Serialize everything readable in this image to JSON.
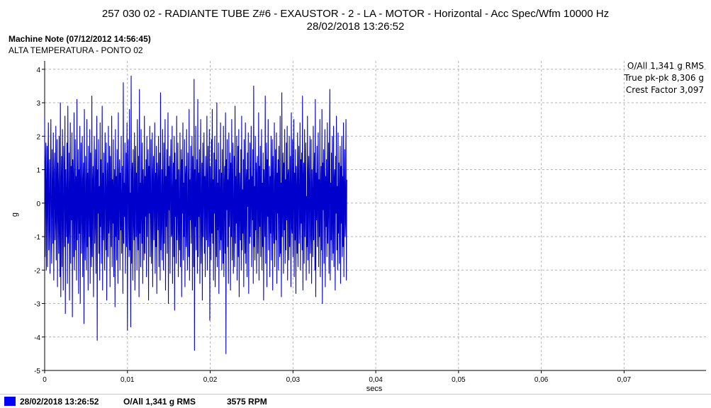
{
  "header": {
    "title": "257 030 02 - RADIANTE TUBE Z#6 - EXAUSTOR - 2 - LA - MOTOR - Horizontal - Acc Spec/Wfm 10000 Hz",
    "subtitle": "28/02/2018 13:26:52"
  },
  "note": {
    "heading": "Machine Note (07/12/2012 14:56:45)",
    "text": "ALTA TEMPERATURA - PONTO 02"
  },
  "stats": {
    "overall": "O/All 1,341 g RMS",
    "peak_to_peak": "True pk-pk 8,306 g",
    "crest_factor": "Crest Factor 3,097"
  },
  "status_bar": {
    "date": "28/02/2018 13:26:52",
    "overall": "O/All 1,341 g RMS",
    "rpm": "3575 RPM",
    "swatch_color": "#0000ff"
  },
  "chart_data": {
    "type": "line",
    "xlabel": "secs",
    "ylabel": "g",
    "xlim": [
      0,
      0.0799
    ],
    "ylim": [
      -5,
      4.25
    ],
    "x_ticks": [
      0,
      0.01,
      0.02,
      0.03,
      0.04,
      0.05,
      0.06,
      0.07
    ],
    "x_tick_labels": [
      "0",
      "0,01",
      "0,02",
      "0,03",
      "0,04",
      "0,05",
      "0,06",
      "0,07"
    ],
    "y_ticks": [
      4,
      3,
      2,
      1,
      0,
      -1,
      -2,
      -3,
      -4,
      -5
    ],
    "y_tick_labels": [
      "4",
      "3",
      "2",
      "1",
      "0",
      "-1",
      "-2",
      "-3",
      "-4",
      "-5"
    ],
    "grid": true,
    "line_color": "#0000cc",
    "series": [
      {
        "sample_interval_s": 5e-05,
        "values": [
          2.6,
          -1.6,
          1.1,
          1.8,
          -2.0,
          0.4,
          1.7,
          -1.9,
          0.9,
          2.4,
          -1.4,
          -0.6,
          1.3,
          -2.1,
          0.7,
          2.5,
          -0.9,
          -1.8,
          1.6,
          0.2,
          -1.2,
          2.1,
          -2.3,
          0.8,
          1.5,
          -1.1,
          -0.4,
          2.3,
          -1.7,
          0.5,
          1.9,
          -2.5,
          1.2,
          0.3,
          -1.5,
          2.0,
          -0.8,
          -2.2,
          3.0,
          -2.8,
          0.6,
          1.4,
          -1.9,
          2.2,
          -0.3,
          -2.6,
          1.7,
          0.9,
          -1.3,
          2.6,
          -3.3,
          1.0,
          0.1,
          -1.0,
          1.8,
          -2.4,
          2.9,
          -1.2,
          -0.7,
          1.5,
          -2.9,
          0.4,
          2.4,
          -1.8,
          1.1,
          -0.5,
          2.1,
          -3.4,
          1.3,
          0.7,
          -1.6,
          2.7,
          -2.0,
          -0.2,
          1.9,
          -1.4,
          0.8,
          -2.3,
          3.1,
          -1.1,
          0.2,
          1.6,
          -2.7,
          1.0,
          -0.9,
          2.3,
          -3.0,
          0.5,
          1.8,
          -1.5,
          -0.1,
          2.0,
          -2.2,
          0.6,
          1.2,
          -3.6,
          2.8,
          -0.6,
          -1.7,
          1.4,
          0.3,
          -2.0,
          2.5,
          -1.3,
          0.9,
          -2.6,
          1.7,
          0.0,
          -1.0,
          2.2,
          -2.4,
          1.5,
          -0.8,
          -1.9,
          3.2,
          -1.6,
          0.4,
          1.1,
          -2.8,
          0.7,
          2.0,
          -1.2,
          -0.4,
          1.6,
          -2.1,
          0.8,
          2.6,
          -4.1,
          1.0,
          -0.3,
          1.9,
          -1.5,
          0.5,
          -2.3,
          2.4,
          -0.7,
          1.3,
          -1.8,
          0.2,
          2.9,
          -2.6,
          0.9,
          -1.1,
          1.5,
          -0.5,
          -2.0,
          2.1,
          0.6,
          -1.4,
          1.8,
          -2.9,
          0.3,
          1.2,
          -1.6,
          2.3,
          -0.9,
          -0.2,
          1.7,
          -2.5,
          1.4,
          0.1,
          -1.3,
          2.6,
          -1.9,
          0.7,
          -0.6,
          1.9,
          -2.2,
          0.4,
          1.0,
          -3.1,
          2.2,
          -1.0,
          0.8,
          -1.7,
          1.6,
          0.0,
          -2.4,
          2.7,
          -1.1,
          0.5,
          1.3,
          -2.0,
          0.9,
          -0.8,
          2.0,
          -1.5,
          -0.3,
          1.1,
          -2.7,
          3.6,
          -1.2,
          0.6,
          -0.4,
          1.8,
          -2.1,
          0.2,
          1.5,
          -1.3,
          2.4,
          -3.8,
          0.8,
          1.9,
          -0.7,
          -1.6,
          2.8,
          -1.4,
          0.3,
          -3.7,
          3.8,
          -1.8,
          0.7,
          1.2,
          -2.3,
          1.6,
          -0.5,
          -1.1,
          2.1,
          -2.6,
          0.4,
          1.7,
          -1.0,
          0.9,
          -2.0,
          2.5,
          -0.6,
          -1.4,
          1.4,
          -2.8,
          3.4,
          -0.9,
          0.6,
          -1.9,
          2.2,
          -0.2,
          -1.2,
          1.8,
          -2.4,
          1.0,
          0.3,
          -1.7,
          2.6,
          -1.5,
          0.8,
          -0.4,
          1.3,
          -2.2,
          2.0,
          -1.0,
          0.5,
          1.6,
          -2.9,
          1.1,
          -0.3,
          2.3,
          -1.6,
          0.2,
          1.9,
          -1.8,
          -0.6,
          2.1,
          -2.5,
          0.7,
          1.4,
          -1.1,
          0.0,
          2.4,
          -2.1,
          0.9,
          -1.3,
          1.7,
          -2.7,
          1.2,
          0.4,
          -0.8,
          2.0,
          -1.9,
          0.6,
          1.5,
          -2.3,
          3.3,
          -1.4,
          -0.5,
          1.0,
          -1.7,
          2.2,
          -0.1,
          -2.0,
          1.8,
          -1.2,
          0.3,
          2.5,
          -2.6,
          0.8,
          -0.7,
          1.6,
          -1.5,
          0.5,
          2.7,
          -3.0,
          1.1,
          -0.2,
          1.4,
          -2.1,
          0.9,
          1.9,
          -1.0,
          -0.9,
          2.3,
          -2.4,
          0.2,
          1.2,
          -1.6,
          2.0,
          -3.2,
          1.5,
          -0.4,
          0.7,
          -1.8,
          2.6,
          -1.1,
          0.1,
          1.8,
          -2.2,
          1.0,
          -0.6,
          -1.4,
          2.1,
          -1.9,
          0.4,
          1.6,
          -2.8,
          1.3,
          -0.3,
          2.4,
          -1.7,
          0.6,
          -1.0,
          1.9,
          -2.5,
          0.8,
          1.1,
          -1.3,
          2.2,
          -0.8,
          -2.0,
          1.5,
          0.3,
          -1.6,
          2.8,
          -2.3,
          0.7,
          -0.5,
          1.7,
          -1.2,
          0.0,
          2.0,
          -2.6,
          1.4,
          0.5,
          -1.9,
          3.7,
          -4.4,
          1.0,
          -0.7,
          2.3,
          -1.4,
          0.2,
          1.3,
          -2.1,
          3.1,
          -1.6,
          0.9,
          -0.4,
          1.6,
          -2.4,
          0.6,
          2.5,
          -1.8,
          -0.2,
          1.2,
          -2.9,
          1.8,
          -1.0,
          0.3,
          2.1,
          -1.5,
          0.8,
          -2.2,
          1.4,
          0.1,
          -1.1,
          2.6,
          -2.0,
          0.5,
          1.7,
          -1.3,
          -0.6,
          2.2,
          -3.5,
          1.1,
          0.4,
          -1.7,
          1.9,
          -0.9,
          2.8,
          -1.2,
          0.7,
          -2.3,
          1.5,
          -0.3,
          2.0,
          -2.5,
          0.2,
          1.3,
          -1.6,
          3.0,
          -1.9,
          0.6,
          -0.8,
          1.8,
          -2.7,
          1.0,
          0.0,
          -1.4,
          2.4,
          -1.1,
          0.9,
          -2.0,
          1.6,
          -0.5,
          -1.8,
          2.3,
          -2.2,
          0.4,
          1.1,
          -1.5,
          2.7,
          -4.5,
          1.3,
          -0.2,
          1.9,
          -1.3,
          0.7,
          -2.4,
          2.1,
          -0.7,
          0.3,
          1.5,
          -2.6,
          1.2,
          -1.0,
          2.5,
          -1.7,
          0.5,
          1.8,
          -2.1,
          -0.4,
          1.4,
          -1.9,
          2.9,
          -1.2,
          0.8,
          -0.6,
          2.0,
          -2.3,
          0.1,
          1.7,
          -1.6,
          2.2,
          -2.8,
          0.9,
          0.2,
          -1.1,
          1.6,
          -2.0,
          2.6,
          -1.4,
          0.4,
          -0.9,
          1.3,
          -2.5,
          1.9,
          -0.3,
          -1.5,
          2.4,
          -1.8,
          0.6,
          1.0,
          -2.2,
          1.5,
          -0.1,
          2.1,
          -2.7,
          0.7,
          -1.2,
          1.8,
          -1.0,
          0.3,
          2.3,
          -1.9,
          0.8,
          -0.5,
          1.6,
          -2.4,
          3.5,
          -1.3,
          0.5,
          -1.7,
          2.0,
          -0.8,
          1.2,
          -2.1,
          0.9,
          1.4,
          -1.5,
          -0.2,
          2.7,
          -2.3,
          1.1,
          -0.7,
          1.7,
          -1.6,
          0.4,
          2.2,
          -2.0,
          0.6,
          -1.3,
          1.5,
          -2.9,
          1.0,
          0.2,
          -1.0,
          3.2,
          -1.8,
          0.7,
          1.8,
          -2.5,
          1.3,
          -0.4,
          2.5,
          -1.4,
          0.0,
          1.1,
          -2.2,
          0.8,
          -0.9,
          2.0,
          -1.7,
          0.5,
          1.9,
          -2.6,
          1.4,
          -0.6,
          -1.2,
          2.4,
          -1.9,
          0.3,
          1.6,
          -1.1,
          2.1,
          -2.4,
          0.9,
          -0.3,
          1.3,
          -2.0,
          1.7,
          0.4,
          -1.6,
          2.6,
          -1.5,
          0.6,
          -2.8,
          3.3,
          -1.0,
          0.1,
          1.5,
          -2.1,
          1.2,
          -0.8,
          2.2,
          -1.8,
          0.7,
          -1.4,
          1.8,
          -0.5,
          2.3,
          -2.3,
          0.8,
          1.0,
          -1.7,
          2.0,
          -1.3,
          0.2,
          1.4,
          -2.5,
          2.7,
          -0.7,
          -0.9,
          1.9,
          -1.6,
          0.5,
          2.5,
          -2.2,
          0.9,
          -1.1,
          1.6,
          -2.7,
          1.1,
          0.3,
          -1.5,
          2.1,
          -1.9,
          0.6,
          1.7,
          -1.2,
          -0.4,
          2.4,
          -2.0,
          1.3,
          -0.6,
          1.5,
          -1.4,
          3.2,
          -2.6,
          0.7,
          1.2,
          -1.8,
          2.2,
          -1.0,
          0.4,
          1.8,
          -2.3,
          0.2,
          -1.3,
          2.6,
          -1.7,
          0.8,
          1.4,
          -2.1,
          0.5,
          2.0,
          -1.5,
          -0.8,
          1.9,
          -2.4,
          1.0,
          0.1,
          -1.6,
          2.3,
          -1.1,
          0.6,
          1.5,
          -2.0,
          3.1,
          -2.8,
          0.9,
          -0.5,
          1.7,
          -1.3,
          0.3,
          2.1,
          -1.9,
          0.7,
          -1.0,
          2.5,
          -2.2,
          0.4,
          1.1,
          -1.4,
          2.8,
          -3.0,
          1.2,
          -0.2,
          1.6,
          -1.8,
          0.5,
          2.2,
          -2.5,
          0.8,
          -0.7,
          1.3,
          -1.6,
          2.4,
          -1.2,
          0.0,
          1.8,
          -2.1,
          0.9,
          3.4,
          -2.3,
          0.6,
          -1.1,
          1.5,
          -1.7,
          2.0,
          -0.4,
          -1.5,
          2.3,
          -1.9,
          0.7,
          1.0,
          -2.6,
          1.4,
          -0.3,
          2.6,
          -1.4,
          0.5,
          -2.0,
          2.1,
          -0.9,
          1.2,
          -1.8,
          0.3,
          1.7,
          -2.4,
          1.1,
          -0.6,
          2.0,
          -1.6,
          0.8,
          -1.3,
          2.4,
          -2.2,
          0.2,
          1.6,
          -1.0,
          -0.5,
          2.5,
          -2.3,
          0.7
        ]
      }
    ]
  }
}
